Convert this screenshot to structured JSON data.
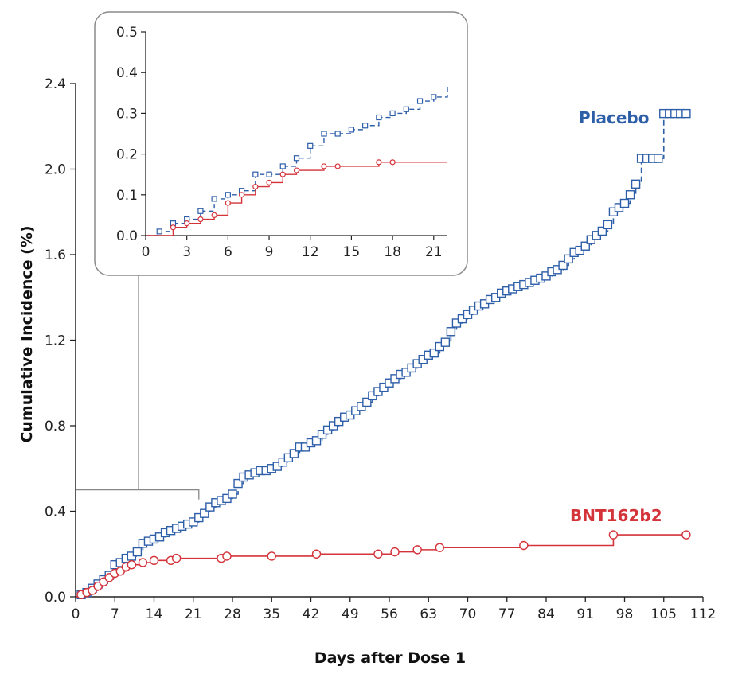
{
  "chart_data": {
    "type": "line",
    "xlabel": "Days after Dose 1",
    "ylabel": "Cumulative Incidence (%)",
    "xlim": [
      0,
      112
    ],
    "ylim": [
      0,
      2.4
    ],
    "x_ticks": [
      "0",
      "7",
      "14",
      "21",
      "28",
      "35",
      "42",
      "49",
      "56",
      "63",
      "70",
      "77",
      "84",
      "91",
      "98",
      "105",
      "112"
    ],
    "y_ticks": [
      "0.0",
      "0.4",
      "0.8",
      "1.2",
      "1.6",
      "2.0",
      "2.4"
    ],
    "series": [
      {
        "name": "Placebo",
        "color": "#2d5ea8",
        "line_style": "dashed",
        "marker": "open-square",
        "x": [
          0,
          1,
          2,
          3,
          4,
          5,
          6,
          7,
          8,
          9,
          10,
          11,
          12,
          13,
          14,
          15,
          16,
          17,
          18,
          19,
          20,
          21,
          22,
          23,
          24,
          25,
          26,
          27,
          28,
          29,
          30,
          31,
          32,
          33,
          34,
          35,
          36,
          37,
          38,
          39,
          40,
          41,
          42,
          43,
          44,
          45,
          46,
          47,
          48,
          49,
          50,
          51,
          52,
          53,
          54,
          55,
          56,
          57,
          58,
          59,
          60,
          61,
          62,
          63,
          64,
          65,
          66,
          67,
          68,
          69,
          70,
          71,
          72,
          73,
          74,
          75,
          76,
          77,
          78,
          79,
          80,
          81,
          82,
          83,
          84,
          85,
          86,
          87,
          88,
          89,
          90,
          91,
          92,
          93,
          94,
          95,
          96,
          97,
          98,
          99,
          100,
          101,
          102,
          103,
          104,
          105,
          106,
          107,
          108,
          109
        ],
        "y": [
          0.0,
          0.01,
          0.02,
          0.04,
          0.06,
          0.08,
          0.1,
          0.15,
          0.16,
          0.18,
          0.19,
          0.21,
          0.25,
          0.26,
          0.27,
          0.28,
          0.3,
          0.31,
          0.32,
          0.33,
          0.34,
          0.35,
          0.37,
          0.39,
          0.42,
          0.44,
          0.45,
          0.46,
          0.48,
          0.53,
          0.56,
          0.57,
          0.58,
          0.59,
          0.59,
          0.6,
          0.61,
          0.63,
          0.65,
          0.67,
          0.7,
          0.7,
          0.72,
          0.73,
          0.76,
          0.78,
          0.8,
          0.82,
          0.84,
          0.85,
          0.87,
          0.89,
          0.91,
          0.94,
          0.96,
          0.98,
          1.0,
          1.02,
          1.04,
          1.05,
          1.07,
          1.09,
          1.11,
          1.13,
          1.14,
          1.17,
          1.19,
          1.24,
          1.28,
          1.3,
          1.32,
          1.34,
          1.36,
          1.37,
          1.39,
          1.4,
          1.42,
          1.43,
          1.44,
          1.45,
          1.46,
          1.47,
          1.48,
          1.49,
          1.5,
          1.52,
          1.53,
          1.55,
          1.58,
          1.61,
          1.62,
          1.64,
          1.67,
          1.69,
          1.71,
          1.74,
          1.8,
          1.82,
          1.84,
          1.88,
          1.93,
          2.05,
          2.05,
          2.05,
          2.05,
          2.26,
          2.26,
          2.26,
          2.26,
          2.26
        ]
      },
      {
        "name": "BNT162b2",
        "color": "#d4333a",
        "line_style": "solid",
        "marker": "open-circle",
        "x": [
          0,
          1,
          2,
          3,
          4,
          5,
          6,
          7,
          8,
          9,
          10,
          12,
          14,
          17,
          18,
          26,
          27,
          35,
          43,
          54,
          57,
          61,
          65,
          80,
          96,
          109
        ],
        "y": [
          0.0,
          0.01,
          0.02,
          0.03,
          0.05,
          0.07,
          0.09,
          0.11,
          0.12,
          0.14,
          0.15,
          0.16,
          0.17,
          0.17,
          0.18,
          0.18,
          0.19,
          0.19,
          0.2,
          0.2,
          0.21,
          0.22,
          0.23,
          0.24,
          0.29,
          0.29
        ]
      }
    ],
    "inset": {
      "xlim": [
        0,
        22
      ],
      "ylim": [
        0,
        0.5
      ],
      "x_ticks": [
        "0",
        "3",
        "6",
        "9",
        "12",
        "15",
        "18",
        "21"
      ],
      "y_ticks": [
        "0.0",
        "0.1",
        "0.2",
        "0.3",
        "0.4",
        "0.5"
      ],
      "series": [
        {
          "name": "Placebo",
          "x": [
            0,
            1,
            2,
            3,
            4,
            5,
            6,
            7,
            8,
            9,
            10,
            11,
            12,
            13,
            14,
            15,
            16,
            17,
            18,
            19,
            20,
            21,
            22
          ],
          "y": [
            0.0,
            0.01,
            0.03,
            0.04,
            0.06,
            0.09,
            0.1,
            0.11,
            0.15,
            0.15,
            0.17,
            0.19,
            0.22,
            0.25,
            0.25,
            0.26,
            0.27,
            0.29,
            0.3,
            0.31,
            0.33,
            0.34,
            0.37
          ]
        },
        {
          "name": "BNT162b2",
          "x": [
            0,
            2,
            3,
            4,
            5,
            6,
            7,
            8,
            9,
            10,
            11,
            13,
            14,
            17,
            18,
            22
          ],
          "y": [
            0.0,
            0.02,
            0.03,
            0.04,
            0.05,
            0.08,
            0.1,
            0.12,
            0.13,
            0.15,
            0.16,
            0.17,
            0.17,
            0.18,
            0.18,
            0.18
          ]
        }
      ]
    }
  }
}
